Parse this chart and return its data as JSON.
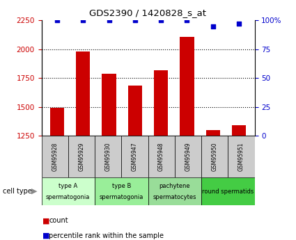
{
  "title": "GDS2390 / 1420828_s_at",
  "samples": [
    "GSM95928",
    "GSM95929",
    "GSM95930",
    "GSM95947",
    "GSM95948",
    "GSM95949",
    "GSM95950",
    "GSM95951"
  ],
  "counts": [
    1490,
    1980,
    1790,
    1685,
    1820,
    2105,
    1300,
    1340
  ],
  "percentile_ranks": [
    100,
    100,
    100,
    100,
    100,
    100,
    95,
    97
  ],
  "ylim_left": [
    1250,
    2250
  ],
  "ylim_right": [
    0,
    100
  ],
  "yticks_left": [
    1250,
    1500,
    1750,
    2000,
    2250
  ],
  "yticks_right": [
    0,
    25,
    50,
    75,
    100
  ],
  "bar_color": "#cc0000",
  "dot_color": "#0000cc",
  "sample_box_color": "#cccccc",
  "cell_types": [
    {
      "label": "type A\nspermatogonia",
      "color": "#ccffcc",
      "start": 0,
      "end": 2
    },
    {
      "label": "type B\nspermatogonia",
      "color": "#99ee99",
      "start": 2,
      "end": 4
    },
    {
      "label": "pachytene\nspermatocytes",
      "color": "#99dd99",
      "start": 4,
      "end": 6
    },
    {
      "label": "round spermatids",
      "color": "#44cc44",
      "start": 6,
      "end": 8
    }
  ]
}
